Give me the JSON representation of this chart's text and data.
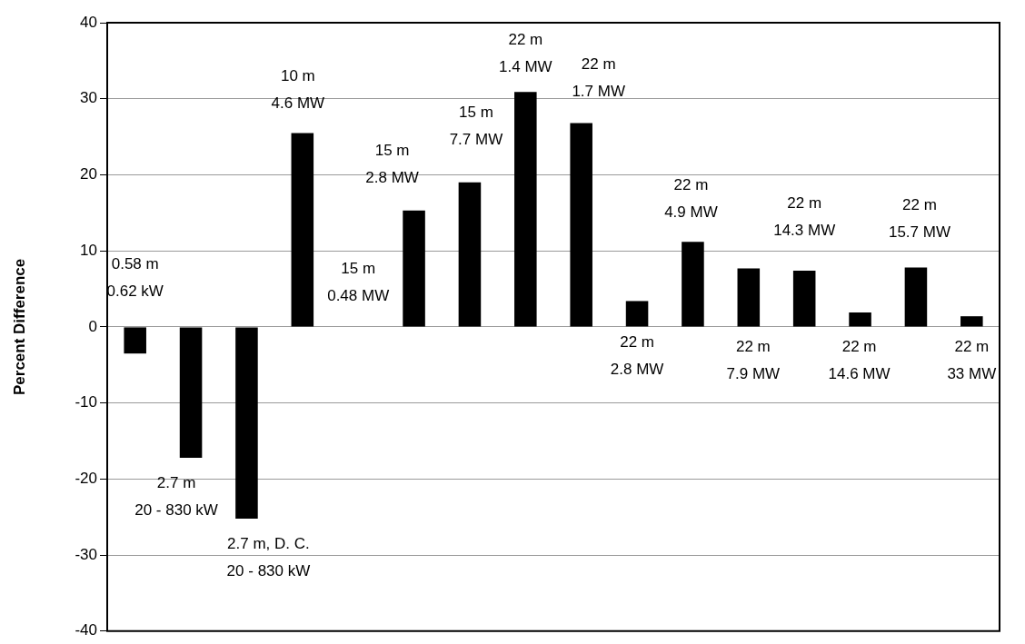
{
  "chart_data": {
    "type": "bar",
    "ylabel": "Percent Difference",
    "categories": [
      "0.58 m\n0.62 kW",
      "2.7 m\n20 - 830 kW",
      "2.7 m, D. C.\n20 - 830 kW",
      "10 m\n4.6 MW",
      "15 m\n0.48 MW",
      "15 m\n2.8 MW",
      "15 m\n7.7 MW",
      "22 m\n1.4 MW",
      "22 m\n1.7 MW",
      "22 m\n2.8 MW",
      "22 m\n4.9 MW",
      "22 m\n7.9 MW",
      "22 m\n14.3 MW",
      "22 m\n14.6 MW",
      "22 m\n15.7 MW",
      "22 m\n33 MW"
    ],
    "values": [
      -3.5,
      -17.2,
      -25.2,
      25.5,
      null,
      15.3,
      19.0,
      30.9,
      26.8,
      3.4,
      11.2,
      7.7,
      7.4,
      1.9,
      7.8,
      1.4
    ],
    "color": "#000000",
    "ylim": [
      -40,
      40
    ],
    "yticks": [
      -40,
      -30,
      -20,
      -10,
      0,
      10,
      20,
      30,
      40
    ],
    "grid": "y"
  }
}
